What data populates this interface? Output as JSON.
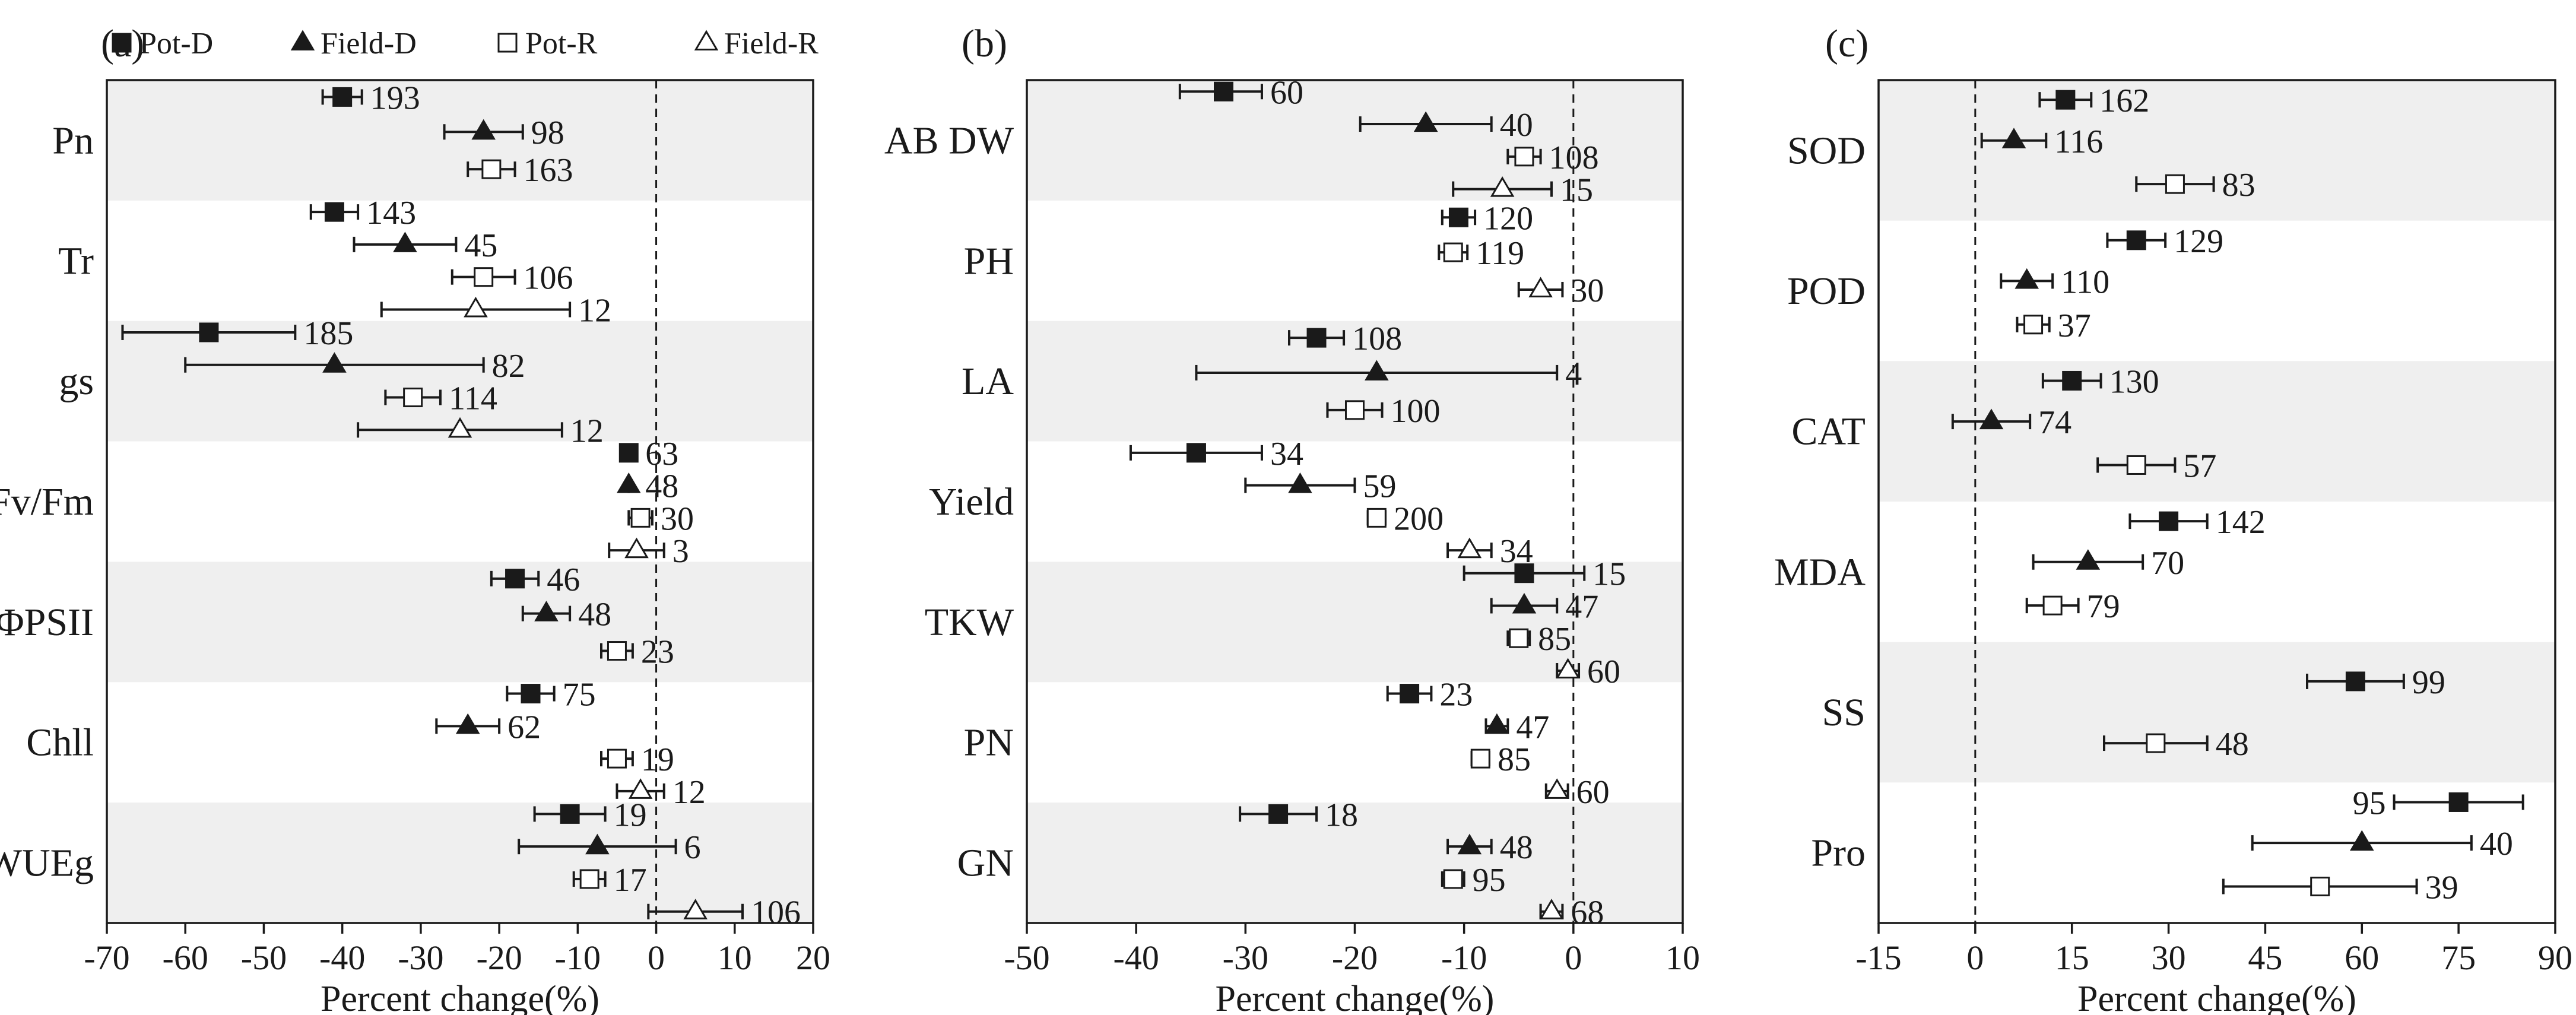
{
  "legend": {
    "items": [
      {
        "label": "Pot-D",
        "marker": "square-filled"
      },
      {
        "label": "Field-D",
        "marker": "triangle-filled"
      },
      {
        "label": "Pot-R",
        "marker": "square-open"
      },
      {
        "label": "Field-R",
        "marker": "triangle-open"
      }
    ]
  },
  "colors": {
    "marker": "#1a1a1a",
    "band": "#efefef",
    "open_fill": "#ffffff"
  },
  "chart_data": [
    {
      "type": "forest",
      "panel_label": "(a)",
      "xlabel": "Percent change(%)",
      "xlim": [
        -70,
        20
      ],
      "xticks": [
        -70,
        -60,
        -50,
        -40,
        -30,
        -20,
        -10,
        0,
        10,
        20
      ],
      "categories": [
        {
          "name": "Pn",
          "shaded": true,
          "points": [
            {
              "group": "Pot-D",
              "mean": -40,
              "low": -42.5,
              "high": -37.5,
              "n": "193"
            },
            {
              "group": "Field-D",
              "mean": -22,
              "low": -27,
              "high": -17,
              "n": "98"
            },
            {
              "group": "Pot-R",
              "mean": -21,
              "low": -24,
              "high": -18,
              "n": "163"
            }
          ]
        },
        {
          "name": "Tr",
          "shaded": false,
          "points": [
            {
              "group": "Pot-D",
              "mean": -41,
              "low": -44,
              "high": -38,
              "n": "143"
            },
            {
              "group": "Field-D",
              "mean": -32,
              "low": -38.5,
              "high": -25.5,
              "n": "45"
            },
            {
              "group": "Pot-R",
              "mean": -22,
              "low": -26,
              "high": -18,
              "n": "106"
            },
            {
              "group": "Field-R",
              "mean": -23,
              "low": -35,
              "high": -11,
              "n": "12"
            }
          ]
        },
        {
          "name": "gs",
          "shaded": true,
          "points": [
            {
              "group": "Pot-D",
              "mean": -57,
              "low": -68,
              "high": -46,
              "n": "185"
            },
            {
              "group": "Field-D",
              "mean": -41,
              "low": -60,
              "high": -22,
              "n": "82"
            },
            {
              "group": "Pot-R",
              "mean": -31,
              "low": -34.5,
              "high": -27.5,
              "n": "114"
            },
            {
              "group": "Field-R",
              "mean": -25,
              "low": -38,
              "high": -12,
              "n": "12"
            }
          ]
        },
        {
          "name": "Fv/Fm",
          "shaded": false,
          "points": [
            {
              "group": "Pot-D",
              "mean": -3.5,
              "low": -3.5,
              "high": -3.5,
              "n": "63"
            },
            {
              "group": "Field-D",
              "mean": -3.5,
              "low": -3.5,
              "high": -3.5,
              "n": "48"
            },
            {
              "group": "Pot-R",
              "mean": -2,
              "low": -3.5,
              "high": -0.5,
              "n": "30"
            },
            {
              "group": "Field-R",
              "mean": -2.5,
              "low": -6,
              "high": 1,
              "n": "3"
            }
          ]
        },
        {
          "name": "ΦPSII",
          "shaded": true,
          "points": [
            {
              "group": "Pot-D",
              "mean": -18,
              "low": -21,
              "high": -15,
              "n": "46"
            },
            {
              "group": "Field-D",
              "mean": -14,
              "low": -17,
              "high": -11,
              "n": "48"
            },
            {
              "group": "Pot-R",
              "mean": -5,
              "low": -7,
              "high": -3,
              "n": "23"
            }
          ]
        },
        {
          "name": "Chll",
          "shaded": false,
          "points": [
            {
              "group": "Pot-D",
              "mean": -16,
              "low": -19,
              "high": -13,
              "n": "75"
            },
            {
              "group": "Field-D",
              "mean": -24,
              "low": -28,
              "high": -20,
              "n": "62"
            },
            {
              "group": "Pot-R",
              "mean": -5,
              "low": -7,
              "high": -3,
              "n": "19"
            },
            {
              "group": "Field-R",
              "mean": -2,
              "low": -5,
              "high": 1,
              "n": "12"
            }
          ]
        },
        {
          "name": "WUEg",
          "shaded": true,
          "points": [
            {
              "group": "Pot-D",
              "mean": -11,
              "low": -15.5,
              "high": -6.5,
              "n": "19"
            },
            {
              "group": "Field-D",
              "mean": -7.5,
              "low": -17.5,
              "high": 2.5,
              "n": "6"
            },
            {
              "group": "Pot-R",
              "mean": -8.5,
              "low": -10.5,
              "high": -6.5,
              "n": "17"
            },
            {
              "group": "Field-R",
              "mean": 5,
              "low": -1,
              "high": 11,
              "n": "106"
            }
          ]
        }
      ]
    },
    {
      "type": "forest",
      "panel_label": "(b)",
      "xlabel": "Percent change(%)",
      "xlim": [
        -50,
        10
      ],
      "xticks": [
        -50,
        -40,
        -30,
        -20,
        -10,
        0,
        10
      ],
      "categories": [
        {
          "name": "AB DW",
          "shaded": true,
          "points": [
            {
              "group": "Pot-D",
              "mean": -32,
              "low": -36,
              "high": -28.5,
              "n": "60"
            },
            {
              "group": "Field-D",
              "mean": -13.5,
              "low": -19.5,
              "high": -7.5,
              "n": "40"
            },
            {
              "group": "Pot-R",
              "mean": -4.5,
              "low": -6,
              "high": -3,
              "n": "108"
            },
            {
              "group": "Field-R",
              "mean": -6.5,
              "low": -11,
              "high": -2,
              "n": "15"
            }
          ]
        },
        {
          "name": "PH",
          "shaded": false,
          "points": [
            {
              "group": "Pot-D",
              "mean": -10.5,
              "low": -12,
              "high": -9,
              "n": "120"
            },
            {
              "group": "Pot-R",
              "mean": -11,
              "low": -12.3,
              "high": -9.7,
              "n": "119"
            },
            {
              "group": "Field-R",
              "mean": -3,
              "low": -5,
              "high": -1,
              "n": "30"
            }
          ]
        },
        {
          "name": "LA",
          "shaded": true,
          "points": [
            {
              "group": "Pot-D",
              "mean": -23.5,
              "low": -26,
              "high": -21,
              "n": "108"
            },
            {
              "group": "Field-D",
              "mean": -18,
              "low": -34.5,
              "high": -1.5,
              "n": "4"
            },
            {
              "group": "Pot-R",
              "mean": -20,
              "low": -22.5,
              "high": -17.5,
              "n": "100"
            }
          ]
        },
        {
          "name": "Yield",
          "shaded": false,
          "points": [
            {
              "group": "Pot-D",
              "mean": -34.5,
              "low": -40.5,
              "high": -28.5,
              "n": "34"
            },
            {
              "group": "Field-D",
              "mean": -25,
              "low": -30,
              "high": -20,
              "n": "59"
            },
            {
              "group": "Pot-R",
              "mean": -18,
              "low": -18.8,
              "high": -17.2,
              "n": "200"
            },
            {
              "group": "Field-R",
              "mean": -9.5,
              "low": -11.5,
              "high": -7.5,
              "n": "34"
            }
          ]
        },
        {
          "name": "TKW",
          "shaded": true,
          "points": [
            {
              "group": "Pot-D",
              "mean": -4.5,
              "low": -10,
              "high": 1,
              "n": "15"
            },
            {
              "group": "Field-D",
              "mean": -4.5,
              "low": -7.5,
              "high": -1.5,
              "n": "47"
            },
            {
              "group": "Pot-R",
              "mean": -5,
              "low": -6,
              "high": -4,
              "n": "85"
            },
            {
              "group": "Field-R",
              "mean": -0.5,
              "low": -1.5,
              "high": 0.5,
              "n": "60"
            }
          ]
        },
        {
          "name": "PN",
          "shaded": false,
          "points": [
            {
              "group": "Pot-D",
              "mean": -15,
              "low": -17,
              "high": -13,
              "n": "23"
            },
            {
              "group": "Field-D",
              "mean": -7,
              "low": -8,
              "high": -6,
              "n": "47"
            },
            {
              "group": "Pot-R",
              "mean": -8.5,
              "low": -9.3,
              "high": -7.7,
              "n": "85"
            },
            {
              "group": "Field-R",
              "mean": -1.5,
              "low": -2.5,
              "high": -0.5,
              "n": "60"
            }
          ]
        },
        {
          "name": "GN",
          "shaded": true,
          "points": [
            {
              "group": "Pot-D",
              "mean": -27,
              "low": -30.5,
              "high": -23.5,
              "n": "18"
            },
            {
              "group": "Field-D",
              "mean": -9.5,
              "low": -11.5,
              "high": -7.5,
              "n": "48"
            },
            {
              "group": "Pot-R",
              "mean": -11,
              "low": -12,
              "high": -10,
              "n": "95"
            },
            {
              "group": "Field-R",
              "mean": -2,
              "low": -3,
              "high": -1,
              "n": "68"
            }
          ]
        }
      ]
    },
    {
      "type": "forest",
      "panel_label": "(c)",
      "xlabel": "Percent change(%)",
      "xlim": [
        -15,
        90
      ],
      "xticks": [
        -15,
        0,
        15,
        30,
        45,
        60,
        75,
        90
      ],
      "categories": [
        {
          "name": "SOD",
          "shaded": true,
          "points": [
            {
              "group": "Pot-D",
              "mean": 14,
              "low": 10,
              "high": 18,
              "n": "162"
            },
            {
              "group": "Field-D",
              "mean": 6,
              "low": 1,
              "high": 11,
              "n": "116"
            },
            {
              "group": "Pot-R",
              "mean": 31,
              "low": 25,
              "high": 37,
              "n": "83"
            }
          ]
        },
        {
          "name": "POD",
          "shaded": false,
          "points": [
            {
              "group": "Pot-D",
              "mean": 25,
              "low": 20.5,
              "high": 29.5,
              "n": "129"
            },
            {
              "group": "Field-D",
              "mean": 8,
              "low": 4,
              "high": 12,
              "n": "110"
            },
            {
              "group": "Pot-R",
              "mean": 9,
              "low": 6.5,
              "high": 11.5,
              "n": "37"
            }
          ]
        },
        {
          "name": "CAT",
          "shaded": true,
          "points": [
            {
              "group": "Pot-D",
              "mean": 15,
              "low": 10.5,
              "high": 19.5,
              "n": "130"
            },
            {
              "group": "Field-D",
              "mean": 2.5,
              "low": -3.5,
              "high": 8.5,
              "n": "74"
            },
            {
              "group": "Pot-R",
              "mean": 25,
              "low": 19,
              "high": 31,
              "n": "57"
            }
          ]
        },
        {
          "name": "MDA",
          "shaded": false,
          "points": [
            {
              "group": "Pot-D",
              "mean": 30,
              "low": 24,
              "high": 36,
              "n": "142"
            },
            {
              "group": "Field-D",
              "mean": 17.5,
              "low": 9,
              "high": 26,
              "n": "70"
            },
            {
              "group": "Pot-R",
              "mean": 12,
              "low": 8,
              "high": 16,
              "n": "79"
            }
          ]
        },
        {
          "name": "SS",
          "shaded": true,
          "points": [
            {
              "group": "Pot-D",
              "mean": 59,
              "low": 51.5,
              "high": 66.5,
              "n": "99"
            },
            {
              "group": "Pot-R",
              "mean": 28,
              "low": 20,
              "high": 36,
              "n": "48"
            }
          ]
        },
        {
          "name": "Pro",
          "shaded": false,
          "points": [
            {
              "group": "Pot-D",
              "mean": 75,
              "low": 65,
              "high": 85,
              "n": "95",
              "label_side": "left"
            },
            {
              "group": "Field-D",
              "mean": 60,
              "low": 43,
              "high": 77,
              "n": "40"
            },
            {
              "group": "Pot-R",
              "mean": 53.5,
              "low": 38.5,
              "high": 68.5,
              "n": "39"
            }
          ]
        }
      ]
    }
  ]
}
